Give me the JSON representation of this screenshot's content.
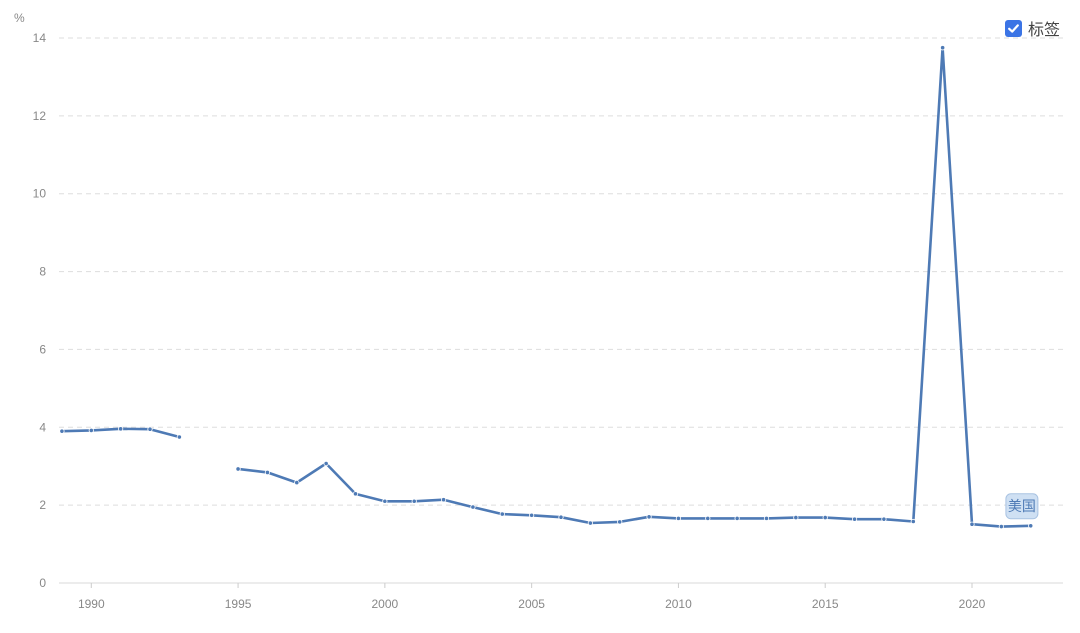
{
  "legend": {
    "checkbox_label": "标签",
    "checked": true
  },
  "chart_data": {
    "type": "line",
    "unit": "%",
    "ylim": [
      0,
      14
    ],
    "y_ticks": [
      0,
      2,
      4,
      6,
      8,
      10,
      12,
      14
    ],
    "xlim": [
      1988.9,
      2023.1
    ],
    "x_ticks": [
      1990,
      1995,
      2000,
      2005,
      2010,
      2015,
      2020
    ],
    "grid": true,
    "colors": {
      "series": "#4e7ab5",
      "label_bg": "#cfe0f3"
    },
    "series": [
      {
        "name": "美国",
        "x": [
          1989,
          1990,
          1991,
          1992,
          1993,
          1994,
          1995,
          1996,
          1997,
          1998,
          1999,
          2000,
          2001,
          2002,
          2003,
          2004,
          2005,
          2006,
          2007,
          2008,
          2009,
          2010,
          2011,
          2012,
          2013,
          2014,
          2015,
          2016,
          2017,
          2018,
          2019,
          2020,
          2021,
          2022
        ],
        "values": [
          3.9,
          3.92,
          3.96,
          3.95,
          3.75,
          null,
          2.93,
          2.84,
          2.58,
          3.07,
          2.29,
          2.1,
          2.1,
          2.14,
          1.95,
          1.77,
          1.74,
          1.69,
          1.54,
          1.57,
          1.7,
          1.66,
          1.66,
          1.66,
          1.66,
          1.68,
          1.68,
          1.64,
          1.64,
          1.58,
          13.75,
          1.51,
          1.45,
          1.47
        ]
      }
    ]
  }
}
